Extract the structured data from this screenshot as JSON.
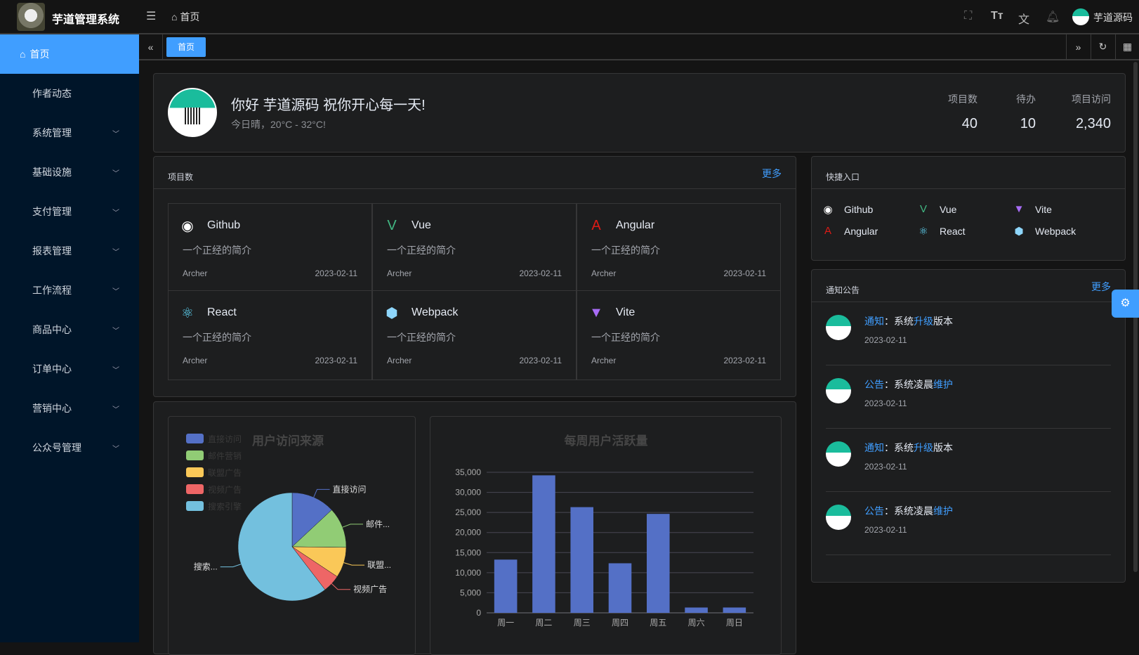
{
  "app": {
    "title": "芋道管理系统",
    "breadcrumb": "首页",
    "user": "芋道源码"
  },
  "header_icons": [
    "fullscreen-icon",
    "font-size-icon",
    "translate-icon",
    "bell-icon"
  ],
  "sidebar": {
    "items": [
      {
        "label": "首页",
        "active": true,
        "icon": "home-icon"
      },
      {
        "label": "作者动态"
      },
      {
        "label": "系统管理",
        "expandable": true
      },
      {
        "label": "基础设施",
        "expandable": true
      },
      {
        "label": "支付管理",
        "expandable": true
      },
      {
        "label": "报表管理",
        "expandable": true
      },
      {
        "label": "工作流程",
        "expandable": true
      },
      {
        "label": "商品中心",
        "expandable": true
      },
      {
        "label": "订单中心",
        "expandable": true
      },
      {
        "label": "营销中心",
        "expandable": true
      },
      {
        "label": "公众号管理",
        "expandable": true
      }
    ]
  },
  "tabs": [
    {
      "label": "首页",
      "active": true
    }
  ],
  "welcome": {
    "greeting": "你好 芋道源码 祝你开心每一天!",
    "weather": "今日晴，20°C - 32°C!",
    "stats": [
      {
        "label": "项目数",
        "value": "40"
      },
      {
        "label": "待办",
        "value": "10"
      },
      {
        "label": "项目访问",
        "value": "2,340"
      }
    ]
  },
  "projects": {
    "title": "项目数",
    "more": "更多",
    "items": [
      {
        "name": "Github",
        "desc": "一个正经的简介",
        "author": "Archer",
        "date": "2023-02-11",
        "icon": "github-icon"
      },
      {
        "name": "Vue",
        "desc": "一个正经的简介",
        "author": "Archer",
        "date": "2023-02-11",
        "icon": "vue-icon"
      },
      {
        "name": "Angular",
        "desc": "一个正经的简介",
        "author": "Archer",
        "date": "2023-02-11",
        "icon": "angular-icon"
      },
      {
        "name": "React",
        "desc": "一个正经的简介",
        "author": "Archer",
        "date": "2023-02-11",
        "icon": "react-icon"
      },
      {
        "name": "Webpack",
        "desc": "一个正经的简介",
        "author": "Archer",
        "date": "2023-02-11",
        "icon": "webpack-icon"
      },
      {
        "name": "Vite",
        "desc": "一个正经的简介",
        "author": "Archer",
        "date": "2023-02-11",
        "icon": "vite-icon"
      }
    ]
  },
  "shortcuts": {
    "title": "快捷入口",
    "items": [
      {
        "name": "Github",
        "icon": "github-icon"
      },
      {
        "name": "Vue",
        "icon": "vue-icon"
      },
      {
        "name": "Vite",
        "icon": "vite-icon"
      },
      {
        "name": "Angular",
        "icon": "angular-icon"
      },
      {
        "name": "React",
        "icon": "react-icon"
      },
      {
        "name": "Webpack",
        "icon": "webpack-icon"
      }
    ]
  },
  "notices": {
    "title": "通知公告",
    "more": "更多",
    "items": [
      {
        "type": "通知",
        "sep": "：",
        "pre": "系统",
        "hl": "升级",
        "post": "版本",
        "date": "2023-02-11"
      },
      {
        "type": "公告",
        "sep": "：",
        "pre": "系统凌晨",
        "hl": "维护",
        "post": "",
        "date": "2023-02-11"
      },
      {
        "type": "通知",
        "sep": "：",
        "pre": "系统",
        "hl": "升级",
        "post": "版本",
        "date": "2023-02-11"
      },
      {
        "type": "公告",
        "sep": "：",
        "pre": "系统凌晨",
        "hl": "维护",
        "post": "",
        "date": "2023-02-11"
      }
    ]
  },
  "chart_data": [
    {
      "type": "pie",
      "title": "用户访问来源",
      "legend_placement": "top-left",
      "categories": [
        "直接访问",
        "邮件营销",
        "联盟广告",
        "视频广告",
        "搜索引擎"
      ],
      "slice_labels": [
        "直接访问",
        "邮件...",
        "联盟...",
        "视频广告",
        "搜索..."
      ],
      "values": [
        335,
        310,
        234,
        135,
        1548
      ],
      "colors": [
        "#5470c6",
        "#91cc75",
        "#fac858",
        "#ee6666",
        "#73c0de"
      ]
    },
    {
      "type": "bar",
      "title": "每周用户活跃量",
      "categories": [
        "周一",
        "周二",
        "周三",
        "周四",
        "周五",
        "周六",
        "周日"
      ],
      "values": [
        13253,
        34235,
        26321,
        12340,
        24643,
        1322,
        1324
      ],
      "ylim": [
        0,
        35000
      ],
      "yticks": [
        "0",
        "5,000",
        "10,000",
        "15,000",
        "20,000",
        "25,000",
        "30,000",
        "35,000"
      ],
      "grid": true,
      "color": "#5470c6"
    }
  ]
}
